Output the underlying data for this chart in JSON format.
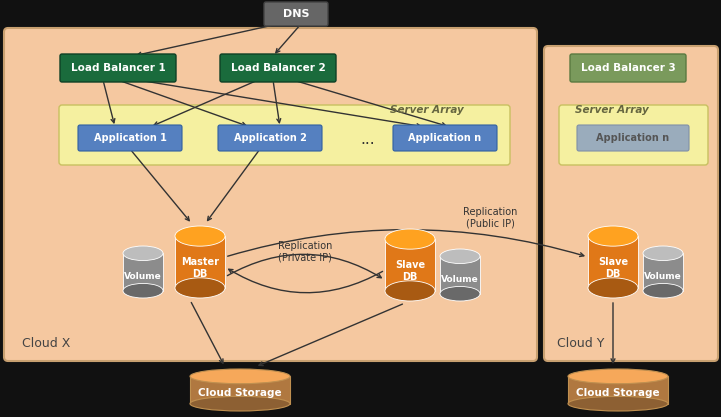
{
  "fig_bg": "#111111",
  "cloud_x_bg": "#f5c8a0",
  "cloud_y_bg": "#f5c8a0",
  "cloud_border": "#c8a070",
  "server_array_bg": "#f5f0a0",
  "server_array_border": "#c8c060",
  "dns_color": "#666666",
  "lb_color": "#1a6b3c",
  "lb3_color": "#7a9a5c",
  "app_color": "#5580c0",
  "app_y_color": "#9aacbc",
  "orange_db": "#e07818",
  "gray_vol": "#8c8c8c",
  "brown_storage": "#b07840",
  "arrow_color": "#333333",
  "cloud_x_label": "Cloud X",
  "cloud_y_label": "Cloud Y",
  "dns_label": "DNS",
  "lb1_label": "Load Balancer 1",
  "lb2_label": "Load Balancer 2",
  "lb3_label": "Load Balancer 3",
  "app1_label": "Application 1",
  "app2_label": "Application 2",
  "appn_label": "Application n",
  "server_array_label": "Server Array",
  "master_label": "Master\nDB",
  "slave1_label": "Slave\nDB",
  "slave2_label": "Slave\nDB",
  "vol_label": "Volume",
  "cs_label": "Cloud Storage",
  "rep_priv_label": "Replication\n(Private IP)",
  "rep_pub_label": "Replication\n(Public IP)"
}
